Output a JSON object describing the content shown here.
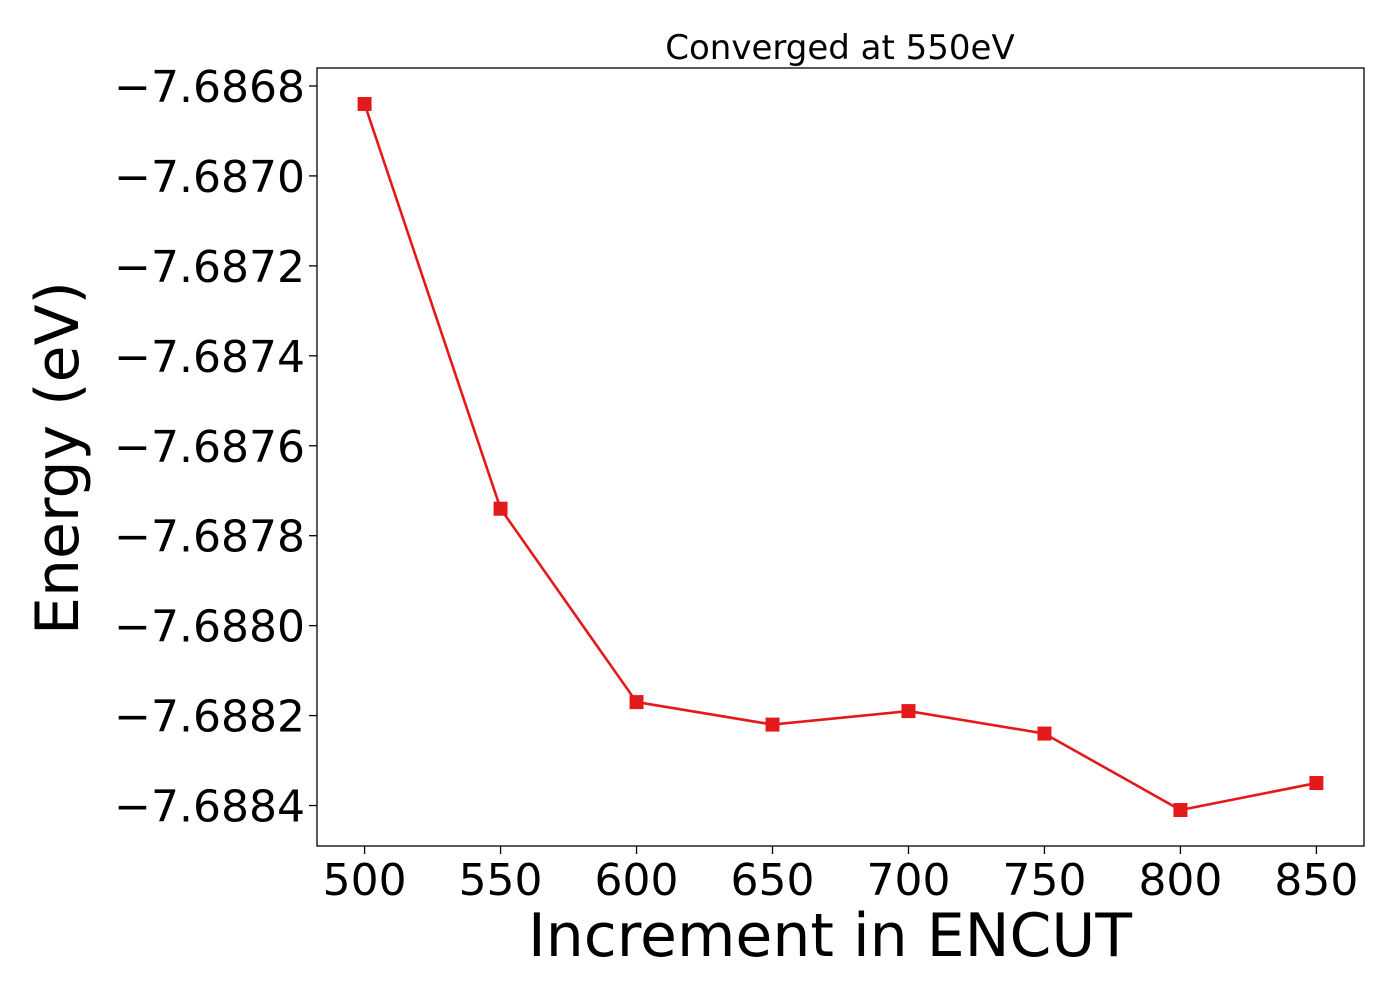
{
  "chart_data": {
    "type": "line",
    "title": "Converged at 550eV",
    "xlabel": "Increment in ENCUT",
    "ylabel": "Energy (eV)",
    "x": [
      500,
      550,
      600,
      650,
      700,
      750,
      800,
      850
    ],
    "series": [
      {
        "values": [
          -7.68684,
          -7.68774,
          -7.68817,
          -7.68822,
          -7.68819,
          -7.68824,
          -7.68841,
          -7.68835
        ],
        "color": "#e31a1c",
        "marker": "square"
      }
    ],
    "xlim": [
      482.5,
      867.5
    ],
    "ylim": [
      -7.68849,
      -7.68676
    ],
    "xticks": [
      500,
      550,
      600,
      650,
      700,
      750,
      800,
      850
    ],
    "xtick_labels": [
      "500",
      "550",
      "600",
      "650",
      "700",
      "750",
      "800",
      "850"
    ],
    "yticks": [
      -7.6868,
      -7.687,
      -7.6872,
      -7.6874,
      -7.6876,
      -7.6878,
      -7.688,
      -7.6882,
      -7.6884
    ],
    "ytick_labels": [
      "−7.6868",
      "−7.6870",
      "−7.6872",
      "−7.6874",
      "−7.6876",
      "−7.6878",
      "−7.6880",
      "−7.6882",
      "−7.6884"
    ],
    "grid": false,
    "legend": "none"
  }
}
